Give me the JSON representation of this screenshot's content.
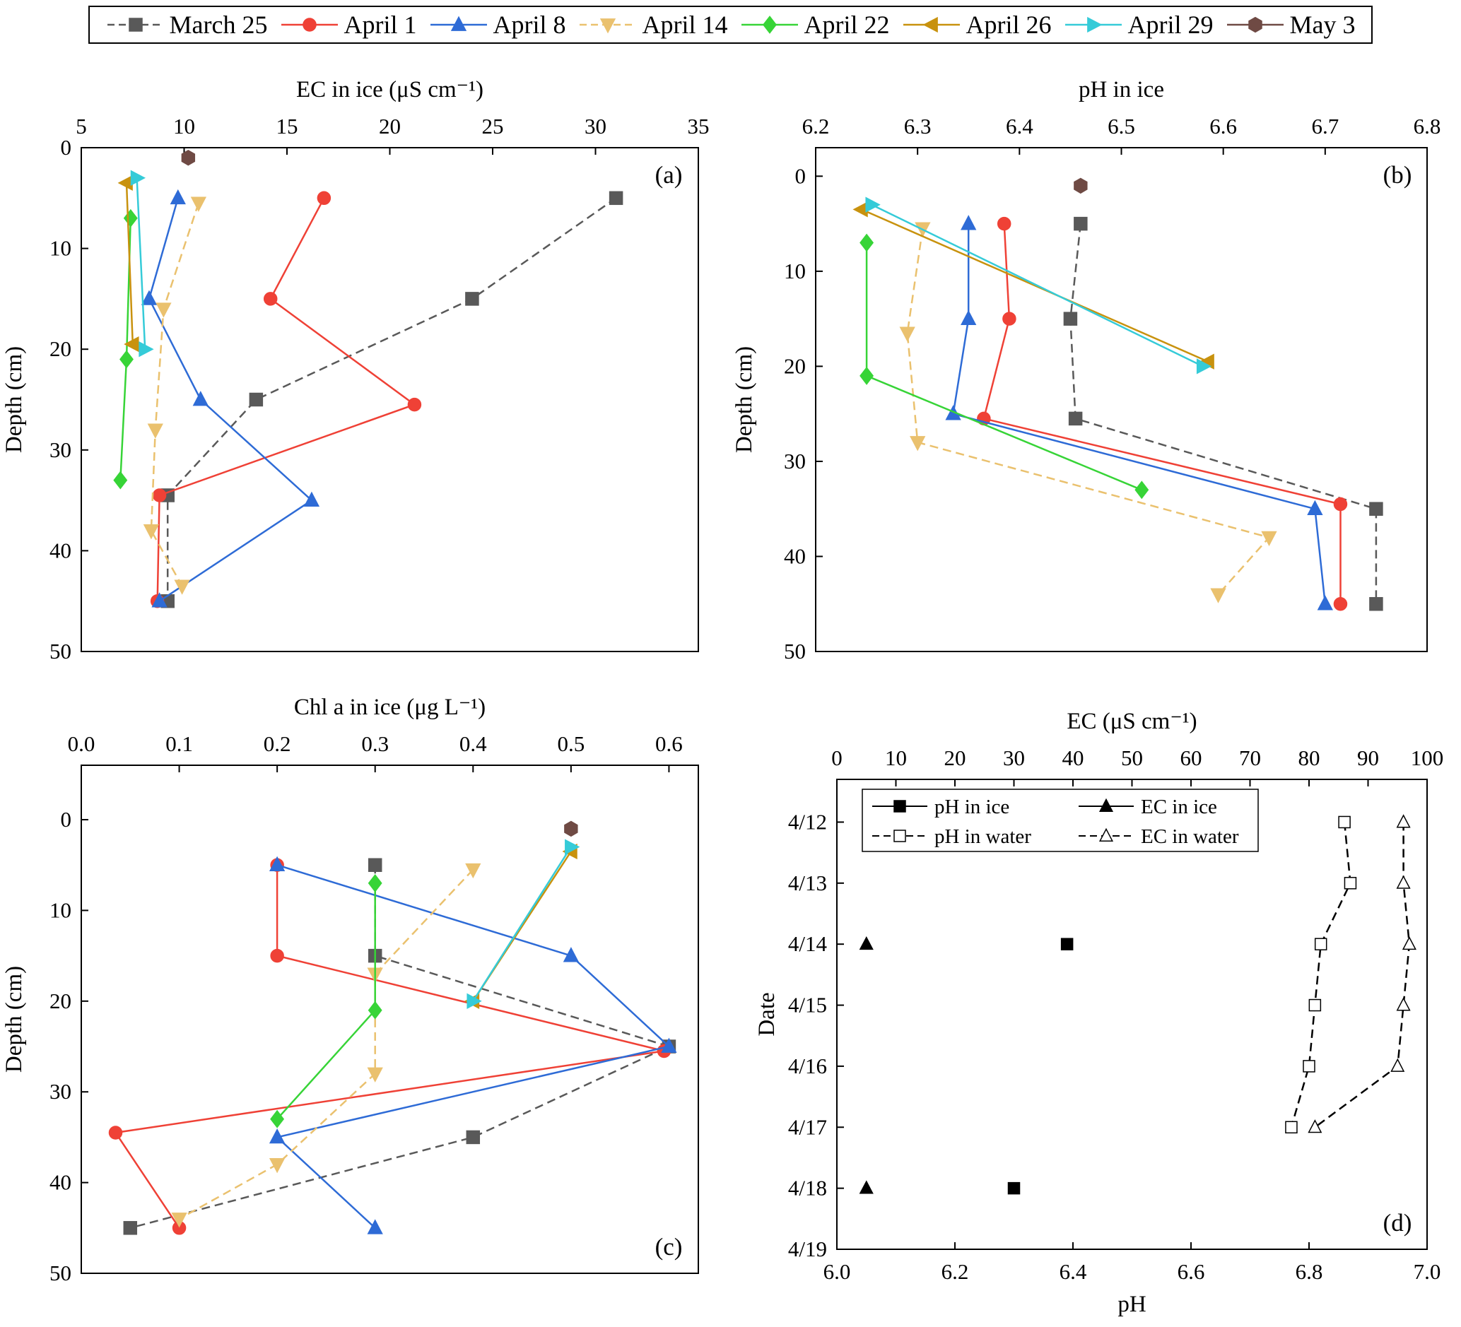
{
  "legend": {
    "items": [
      "March 25",
      "April 1",
      "April 8",
      "April 14",
      "April 22",
      "April 26",
      "April 29",
      "May 3"
    ]
  },
  "series_styles": {
    "March 25": {
      "color": "#595959",
      "marker": "square",
      "dash": true
    },
    "April 1": {
      "color": "#ef4136",
      "marker": "circle",
      "dash": false
    },
    "April 8": {
      "color": "#2e6bd6",
      "marker": "triangle-up",
      "dash": false
    },
    "April 14": {
      "color": "#eac16e",
      "marker": "triangle-down",
      "dash": true
    },
    "April 22": {
      "color": "#37d437",
      "marker": "diamond",
      "dash": false
    },
    "April 26": {
      "color": "#c8920e",
      "marker": "triangle-left",
      "dash": false
    },
    "April 29": {
      "color": "#35cbd8",
      "marker": "triangle-right",
      "dash": false
    },
    "May 3": {
      "color": "#6f4a44",
      "marker": "hexagon",
      "dash": false
    }
  },
  "chart_data": [
    {
      "id": "a",
      "type": "line",
      "panel_label": "(a)",
      "panel_label_corner": "top-right",
      "xlabel": "EC in ice (μS cm⁻¹)",
      "ylabel": "Depth (cm)",
      "x_axis": "top",
      "grid": false,
      "xlim": [
        5,
        35
      ],
      "xticks": [
        5,
        10,
        15,
        20,
        25,
        30,
        35
      ],
      "xtick_labels": [
        "5",
        "10",
        "15",
        "20",
        "25",
        "30",
        "35"
      ],
      "ylim": [
        0,
        50
      ],
      "yticks": [
        0,
        10,
        20,
        30,
        40,
        50
      ],
      "series": [
        {
          "name": "March 25",
          "points": [
            [
              31,
              5
            ],
            [
              24,
              15
            ],
            [
              13.5,
              25
            ],
            [
              9.2,
              34.5
            ],
            [
              9.2,
              45
            ]
          ]
        },
        {
          "name": "April 1",
          "points": [
            [
              16.8,
              5
            ],
            [
              14.2,
              15
            ],
            [
              21.2,
              25.5
            ],
            [
              8.8,
              34.5
            ],
            [
              8.7,
              45
            ]
          ]
        },
        {
          "name": "April 8",
          "points": [
            [
              9.7,
              5
            ],
            [
              8.3,
              15
            ],
            [
              10.8,
              25
            ],
            [
              16.2,
              35
            ],
            [
              8.8,
              45
            ]
          ]
        },
        {
          "name": "April 14",
          "points": [
            [
              10.7,
              5.5
            ],
            [
              9.0,
              16
            ],
            [
              8.6,
              28
            ],
            [
              8.4,
              38
            ],
            [
              9.9,
              43.5
            ]
          ]
        },
        {
          "name": "April 22",
          "points": [
            [
              7.4,
              7
            ],
            [
              7.2,
              21
            ],
            [
              6.9,
              33
            ]
          ]
        },
        {
          "name": "April 26",
          "points": [
            [
              7.2,
              3.5
            ],
            [
              7.5,
              19.5
            ]
          ]
        },
        {
          "name": "April 29",
          "points": [
            [
              7.7,
              3
            ],
            [
              8.1,
              20
            ]
          ]
        },
        {
          "name": "May 3",
          "points": [
            [
              10.2,
              1
            ]
          ]
        }
      ]
    },
    {
      "id": "b",
      "type": "line",
      "panel_label": "(b)",
      "panel_label_corner": "top-right",
      "xlabel": "pH in ice",
      "ylabel": "Depth (cm)",
      "x_axis": "top",
      "grid": false,
      "xlim": [
        6.2,
        6.8
      ],
      "xticks": [
        6.2,
        6.3,
        6.4,
        6.5,
        6.6,
        6.7,
        6.8
      ],
      "xtick_labels": [
        "6.2",
        "6.3",
        "6.4",
        "6.5",
        "6.6",
        "6.7",
        "6.8"
      ],
      "ylim": [
        -3,
        50
      ],
      "yticks": [
        0,
        10,
        20,
        30,
        40,
        50
      ],
      "series": [
        {
          "name": "March 25",
          "points": [
            [
              6.46,
              5
            ],
            [
              6.45,
              15
            ],
            [
              6.455,
              25.5
            ],
            [
              6.75,
              35
            ],
            [
              6.75,
              45
            ]
          ]
        },
        {
          "name": "April 1",
          "points": [
            [
              6.385,
              5
            ],
            [
              6.39,
              15
            ],
            [
              6.365,
              25.5
            ],
            [
              6.715,
              34.5
            ],
            [
              6.715,
              45
            ]
          ]
        },
        {
          "name": "April 8",
          "points": [
            [
              6.35,
              5
            ],
            [
              6.35,
              15
            ],
            [
              6.335,
              25
            ],
            [
              6.69,
              35
            ],
            [
              6.7,
              45
            ]
          ]
        },
        {
          "name": "April 14",
          "points": [
            [
              6.305,
              5.5
            ],
            [
              6.29,
              16.5
            ],
            [
              6.3,
              28
            ],
            [
              6.645,
              38
            ],
            [
              6.595,
              44
            ]
          ]
        },
        {
          "name": "April 22",
          "points": [
            [
              6.25,
              7
            ],
            [
              6.25,
              21
            ],
            [
              6.52,
              33
            ]
          ]
        },
        {
          "name": "April 26",
          "points": [
            [
              6.245,
              3.5
            ],
            [
              6.585,
              19.5
            ]
          ]
        },
        {
          "name": "April 29",
          "points": [
            [
              6.255,
              3
            ],
            [
              6.58,
              20
            ]
          ]
        },
        {
          "name": "May 3",
          "points": [
            [
              6.46,
              1
            ]
          ]
        }
      ]
    },
    {
      "id": "c",
      "type": "line",
      "panel_label": "(c)",
      "panel_label_corner": "bottom-right",
      "xlabel": "Chl a in ice (μg L⁻¹)",
      "ylabel": "Depth (cm)",
      "x_axis": "top",
      "grid": false,
      "xlim": [
        0,
        0.63
      ],
      "xticks": [
        0,
        0.1,
        0.2,
        0.3,
        0.4,
        0.5,
        0.6
      ],
      "xtick_labels": [
        "0.0",
        "0.1",
        "0.2",
        "0.3",
        "0.4",
        "0.5",
        "0.6"
      ],
      "ylim": [
        -6,
        50
      ],
      "yticks": [
        0,
        10,
        20,
        30,
        40,
        50
      ],
      "series": [
        {
          "name": "March 25",
          "points": [
            [
              0.3,
              5
            ],
            [
              0.3,
              15
            ],
            [
              0.6,
              25
            ],
            [
              0.4,
              35
            ],
            [
              0.05,
              45
            ]
          ]
        },
        {
          "name": "April 1",
          "points": [
            [
              0.2,
              5
            ],
            [
              0.2,
              15
            ],
            [
              0.595,
              25.5
            ],
            [
              0.035,
              34.5
            ],
            [
              0.1,
              45
            ]
          ]
        },
        {
          "name": "April 8",
          "points": [
            [
              0.2,
              5
            ],
            [
              0.5,
              15
            ],
            [
              0.6,
              25
            ],
            [
              0.2,
              35
            ],
            [
              0.3,
              45
            ]
          ]
        },
        {
          "name": "April 14",
          "points": [
            [
              0.4,
              5.5
            ],
            [
              0.3,
              17
            ],
            [
              0.3,
              28
            ],
            [
              0.2,
              38
            ],
            [
              0.1,
              44
            ]
          ]
        },
        {
          "name": "April 22",
          "points": [
            [
              0.3,
              7
            ],
            [
              0.3,
              21
            ],
            [
              0.2,
              33
            ]
          ]
        },
        {
          "name": "April 26",
          "points": [
            [
              0.5,
              3.5
            ],
            [
              0.4,
              20
            ]
          ]
        },
        {
          "name": "April 29",
          "points": [
            [
              0.5,
              3
            ],
            [
              0.4,
              20
            ]
          ]
        },
        {
          "name": "May 3",
          "points": [
            [
              0.5,
              1
            ]
          ]
        }
      ]
    },
    {
      "id": "d",
      "type": "scatter",
      "panel_label": "(d)",
      "panel_label_corner": "bottom-right",
      "xlabel_top": "EC (μS cm⁻¹)",
      "xlabel_bottom": "pH",
      "ylabel": "Date",
      "grid": false,
      "xlim_top": [
        0,
        100
      ],
      "xticks_top": [
        0,
        10,
        20,
        30,
        40,
        50,
        60,
        70,
        80,
        90,
        100
      ],
      "xtick_labels_top": [
        "0",
        "10",
        "20",
        "30",
        "40",
        "50",
        "60",
        "70",
        "80",
        "90",
        "100"
      ],
      "xlim_bottom": [
        6.0,
        7.0
      ],
      "xticks_bottom": [
        6.0,
        6.2,
        6.4,
        6.6,
        6.8,
        7.0
      ],
      "xtick_labels_bottom": [
        "6.0",
        "6.2",
        "6.4",
        "6.6",
        "6.8",
        "7.0"
      ],
      "ylim": [
        11.3,
        19
      ],
      "yticks": [
        12,
        13,
        14,
        15,
        16,
        17,
        18,
        19
      ],
      "ytick_labels": [
        "4/12",
        "4/13",
        "4/14",
        "4/15",
        "4/16",
        "4/17",
        "4/18",
        "4/19"
      ],
      "inner_legend": [
        {
          "label": "pH in ice",
          "marker": "square",
          "filled": true,
          "dash": false
        },
        {
          "label": "EC in ice",
          "marker": "triangle-up",
          "filled": true,
          "dash": false
        },
        {
          "label": "pH in water",
          "marker": "square",
          "filled": false,
          "dash": true
        },
        {
          "label": "EC in water",
          "marker": "triangle-up",
          "filled": false,
          "dash": true
        }
      ],
      "series": [
        {
          "name": "pH in ice",
          "axis": "bottom",
          "marker": "square",
          "filled": true,
          "line": "none",
          "color": "#000000",
          "points": [
            [
              6.39,
              14
            ],
            [
              6.3,
              18
            ]
          ]
        },
        {
          "name": "pH in water",
          "axis": "bottom",
          "marker": "square",
          "filled": false,
          "line": "dashed",
          "color": "#000000",
          "points": [
            [
              6.86,
              12
            ],
            [
              6.87,
              13
            ],
            [
              6.82,
              14
            ],
            [
              6.81,
              15
            ],
            [
              6.8,
              16
            ],
            [
              6.77,
              17
            ]
          ]
        },
        {
          "name": "EC in ice",
          "axis": "top",
          "marker": "triangle-up",
          "filled": true,
          "line": "none",
          "color": "#000000",
          "points": [
            [
              5,
              14
            ],
            [
              5,
              18
            ]
          ]
        },
        {
          "name": "EC in water",
          "axis": "top",
          "marker": "triangle-up",
          "filled": false,
          "line": "dashed",
          "color": "#000000",
          "points": [
            [
              96,
              12
            ],
            [
              96,
              13
            ],
            [
              97,
              14
            ],
            [
              96,
              15
            ],
            [
              95,
              16
            ],
            [
              81,
              17
            ]
          ]
        }
      ]
    }
  ]
}
